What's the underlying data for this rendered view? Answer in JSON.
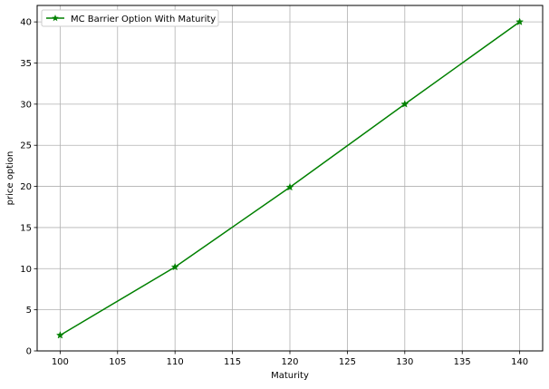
{
  "chart_data": {
    "type": "line",
    "title": "",
    "xlabel": "Maturity",
    "ylabel": "price option",
    "xlim": [
      98,
      142
    ],
    "ylim": [
      0,
      42
    ],
    "xticks": [
      100,
      105,
      110,
      115,
      120,
      125,
      130,
      135,
      140
    ],
    "yticks": [
      0,
      5,
      10,
      15,
      20,
      25,
      30,
      35,
      40
    ],
    "grid": true,
    "legend_position": "upper-left",
    "series": [
      {
        "name": "MC Barrier Option With Maturity",
        "color": "#008000",
        "marker": "star",
        "x": [
          100,
          110,
          120,
          130,
          140
        ],
        "y": [
          1.9,
          10.2,
          19.9,
          30.0,
          40.0
        ]
      }
    ]
  }
}
